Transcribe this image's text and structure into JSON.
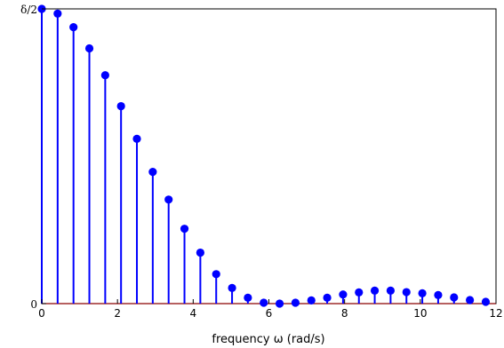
{
  "chart_data": {
    "type": "stem",
    "xlabel": "frequency ω (rad/s)",
    "ylabel": "",
    "xlim": [
      0,
      12
    ],
    "ylim": [
      0,
      1
    ],
    "x_ticks": [
      "0",
      "2",
      "4",
      "6",
      "8",
      "10",
      "12"
    ],
    "x_tick_values": [
      0,
      2,
      4,
      6,
      8,
      10,
      12
    ],
    "y_ticks": [
      "0",
      "δ/2"
    ],
    "y_tick_values": [
      0,
      1
    ],
    "grid": false,
    "baseline_color": "#8b0000",
    "stem_color": "#0000ff",
    "x": [
      0.0,
      0.419,
      0.838,
      1.257,
      1.676,
      2.094,
      2.513,
      2.932,
      3.351,
      3.77,
      4.189,
      4.608,
      5.027,
      5.445,
      5.864,
      6.283,
      6.702,
      7.121,
      7.54,
      7.959,
      8.378,
      8.796,
      9.215,
      9.634,
      10.053,
      10.472,
      10.891,
      11.31,
      11.729
    ],
    "values": [
      1.0,
      0.984,
      0.938,
      0.866,
      0.775,
      0.67,
      0.559,
      0.447,
      0.353,
      0.254,
      0.173,
      0.1,
      0.053,
      0.02,
      0.003,
      0.0,
      0.003,
      0.011,
      0.02,
      0.031,
      0.038,
      0.044,
      0.044,
      0.039,
      0.035,
      0.029,
      0.021,
      0.012,
      0.006
    ]
  }
}
